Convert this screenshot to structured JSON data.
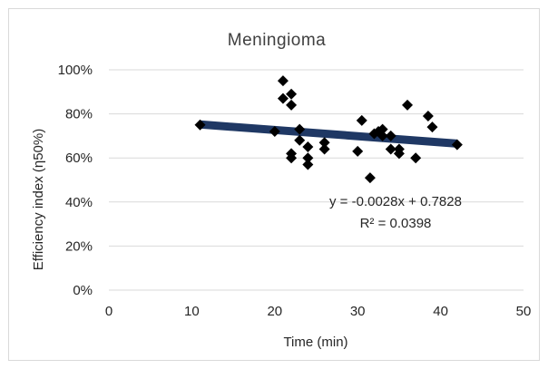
{
  "chart_data": {
    "type": "scatter",
    "title": "Meningioma",
    "xlabel": "Time (min)",
    "ylabel": "Efficiency index (η50%)",
    "xlim": [
      0,
      50
    ],
    "ylim": [
      0,
      1
    ],
    "x_ticks": [
      0,
      10,
      20,
      30,
      40,
      50
    ],
    "x_tick_labels": [
      "0",
      "10",
      "20",
      "30",
      "40",
      "50"
    ],
    "y_ticks": [
      0,
      0.2,
      0.4,
      0.6,
      0.8,
      1.0
    ],
    "y_tick_labels": [
      "0%",
      "20%",
      "40%",
      "60%",
      "80%",
      "100%"
    ],
    "grid": "horizontal",
    "legend": "none",
    "marker": "diamond",
    "colors": {
      "points": "#000000",
      "trendline": "#1f3864",
      "gridline": "#d9d9d9"
    },
    "points": [
      {
        "x": 11,
        "y": 0.75
      },
      {
        "x": 20,
        "y": 0.72
      },
      {
        "x": 21,
        "y": 0.95
      },
      {
        "x": 21,
        "y": 0.87
      },
      {
        "x": 22,
        "y": 0.89
      },
      {
        "x": 22,
        "y": 0.84
      },
      {
        "x": 22,
        "y": 0.62
      },
      {
        "x": 22,
        "y": 0.6
      },
      {
        "x": 23,
        "y": 0.73
      },
      {
        "x": 23,
        "y": 0.68
      },
      {
        "x": 24,
        "y": 0.65
      },
      {
        "x": 24,
        "y": 0.6
      },
      {
        "x": 24,
        "y": 0.57
      },
      {
        "x": 26,
        "y": 0.67
      },
      {
        "x": 26,
        "y": 0.64
      },
      {
        "x": 30,
        "y": 0.63
      },
      {
        "x": 30.5,
        "y": 0.77
      },
      {
        "x": 31.5,
        "y": 0.51
      },
      {
        "x": 32,
        "y": 0.71
      },
      {
        "x": 32.5,
        "y": 0.72
      },
      {
        "x": 33,
        "y": 0.73
      },
      {
        "x": 33,
        "y": 0.7
      },
      {
        "x": 34,
        "y": 0.7
      },
      {
        "x": 34,
        "y": 0.64
      },
      {
        "x": 35,
        "y": 0.64
      },
      {
        "x": 35,
        "y": 0.62
      },
      {
        "x": 36,
        "y": 0.84
      },
      {
        "x": 37,
        "y": 0.6
      },
      {
        "x": 38.5,
        "y": 0.79
      },
      {
        "x": 39,
        "y": 0.74
      },
      {
        "x": 42,
        "y": 0.66
      }
    ],
    "trendline": {
      "slope": -0.0028,
      "intercept": 0.7828,
      "x_range": [
        11,
        42
      ],
      "equation_label": "y = -0.0028x + 0.7828",
      "r2_label": "R² = 0.0398"
    }
  }
}
